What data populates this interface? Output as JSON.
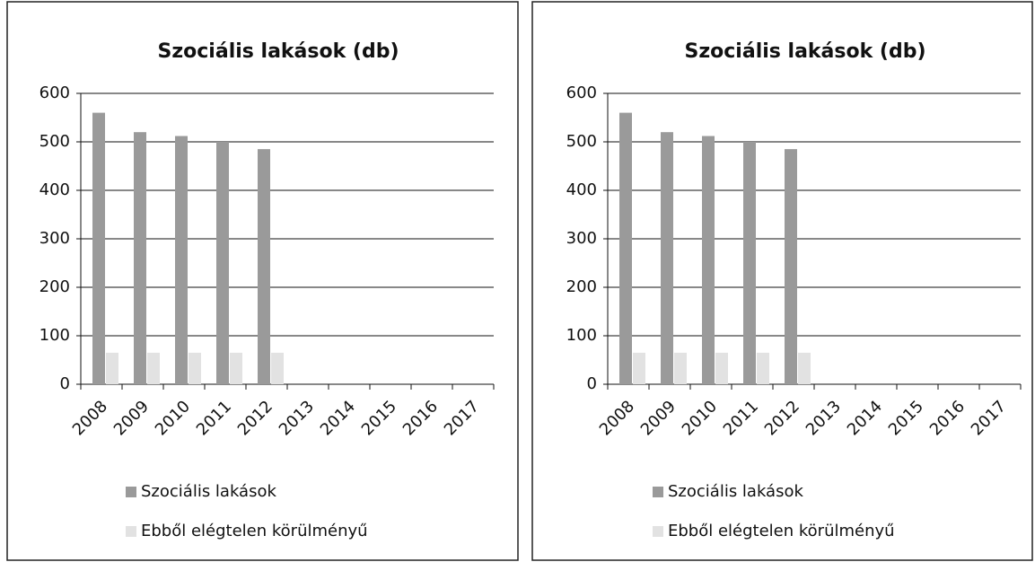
{
  "chart_data": [
    {
      "type": "bar",
      "title": "Szociális lakások (db)",
      "categories": [
        "2008",
        "2009",
        "2010",
        "2011",
        "2012",
        "2013",
        "2014",
        "2015",
        "2016",
        "2017"
      ],
      "series": [
        {
          "name": "Szociális lakások",
          "color": "#9a9a9a",
          "values": [
            560,
            520,
            512,
            500,
            485,
            null,
            null,
            null,
            null,
            null
          ]
        },
        {
          "name": "Ebből elégtelen körülményű",
          "color": "#e2e2e2",
          "values": [
            65,
            65,
            65,
            65,
            65,
            null,
            null,
            null,
            null,
            null
          ]
        }
      ],
      "ylim": [
        0,
        600
      ],
      "yticks": [
        0,
        100,
        200,
        300,
        400,
        500,
        600
      ],
      "grid": true,
      "legend": "bottom"
    },
    {
      "type": "bar",
      "title": "Szociális lakások (db)",
      "categories": [
        "2008",
        "2009",
        "2010",
        "2011",
        "2012",
        "2013",
        "2014",
        "2015",
        "2016",
        "2017"
      ],
      "series": [
        {
          "name": "Szociális lakások",
          "color": "#9a9a9a",
          "values": [
            560,
            520,
            512,
            500,
            485,
            null,
            null,
            null,
            null,
            null
          ]
        },
        {
          "name": "Ebből elégtelen körülményű",
          "color": "#e2e2e2",
          "values": [
            65,
            65,
            65,
            65,
            65,
            null,
            null,
            null,
            null,
            null
          ]
        }
      ],
      "ylim": [
        0,
        600
      ],
      "yticks": [
        0,
        100,
        200,
        300,
        400,
        500,
        600
      ],
      "grid": true,
      "legend": "bottom"
    }
  ]
}
